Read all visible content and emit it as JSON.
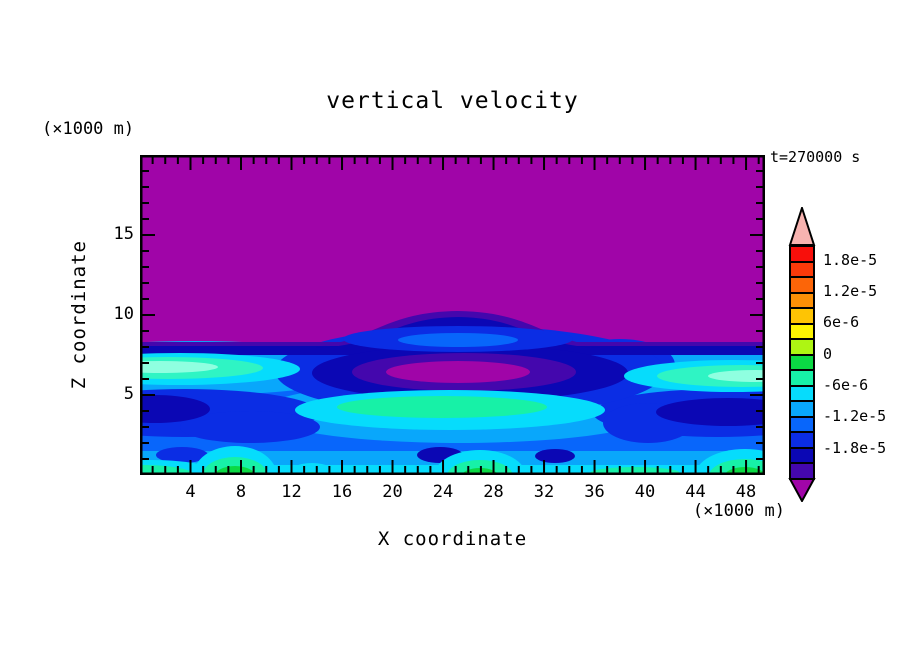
{
  "title": "vertical velocity",
  "time_label": "t=270000 s",
  "axes": {
    "x": {
      "label": "X coordinate",
      "unit": "(×1000 m)",
      "min": 0,
      "max": 49.5,
      "major_ticks": [
        4,
        8,
        12,
        16,
        20,
        24,
        28,
        32,
        36,
        40,
        44,
        48
      ],
      "minor_step": 1
    },
    "z": {
      "label": "Z coordinate",
      "unit": "(×1000 m)",
      "min": 0,
      "max": 20,
      "major_ticks": [
        5,
        10,
        15
      ],
      "minor_step": 1
    }
  },
  "colorbar": {
    "labels": [
      "1.8e-5",
      "1.2e-5",
      "6e-6",
      "0",
      "-6e-6",
      "-1.2e-5",
      "-1.8e-5"
    ],
    "label_boundaries": [
      1,
      3,
      5,
      7,
      9,
      11,
      13
    ],
    "segments": [
      "red",
      "red2",
      "orange",
      "amber",
      "golden",
      "yellow",
      "chartreuse",
      "green",
      "spring",
      "cyan",
      "sky",
      "dodger",
      "blue",
      "navy",
      "indigo"
    ],
    "over_color": "pink",
    "under_color": "purple"
  },
  "palette": {
    "pink": "#f7b3b0",
    "red": "#f80f0b",
    "red2": "#fb3a0a",
    "orange": "#fc6508",
    "amber": "#fd9006",
    "golden": "#fec404",
    "yellow": "#fdf402",
    "chartreuse": "#aef513",
    "green": "#0bd944",
    "spring": "#17f1a7",
    "cyan": "#06dcfc",
    "sky": "#09a7fb",
    "dodger": "#0866fb",
    "blue": "#0b2de4",
    "navy": "#0b07b4",
    "indigo": "#4407ad",
    "purple": "#a005a8",
    "aqua": "#2ff4c4",
    "mint": "#8fffe0"
  },
  "chart_data": {
    "type": "heatmap",
    "subtype": "filled-contour",
    "title": "vertical velocity",
    "xlabel": "X coordinate (×1000 m)",
    "ylabel": "Z coordinate (×1000 m)",
    "xlim": [
      0,
      49.5
    ],
    "ylim": [
      0,
      20
    ],
    "time_label": "t=270000 s",
    "contour_interval": 3e-06,
    "levels": [
      -2.4e-05,
      -2.1e-05,
      -1.8e-05,
      -1.5e-05,
      -1.2e-05,
      -9e-06,
      -6e-06,
      -3e-06,
      0,
      3e-06,
      6e-06,
      9e-06,
      1.2e-05,
      1.5e-05,
      1.8e-05,
      2.1e-05
    ],
    "colorbar_tick_values": [
      1.8e-05,
      1.2e-05,
      6e-06,
      0,
      -6e-06,
      -1.2e-05,
      -1.8e-05
    ],
    "legend_position": "right",
    "grid": false,
    "regions": [
      {
        "location": "all x, z ≈ 8.2–20 (upper half)",
        "value": "below -2.4e-5",
        "color": "purple"
      },
      {
        "location": "all x, band z ≈ 7.5–8.3, bulging to z ≈ 10 over x ≈ 14–34",
        "value": "-2.4e-5 to -1.8e-5",
        "color": "indigo/navy"
      },
      {
        "location": "ellipse x ≈ 17–34, z ≈ 8.5–9.3 inside dome",
        "value": "-1.5e-5 to -1.2e-5",
        "color": "blue/dodger"
      },
      {
        "location": "closed core x ≈ 19.5–31, z ≈ 5.7–7.1, centered x ≈ 25, z ≈ 6.4",
        "value": "below -2.4e-5 core ringed by indigo and navy",
        "color": "purple core"
      },
      {
        "location": "x ≈ 0–9, z ≈ 6.3–7.0 and x ≈ 43–49.5, z ≈ 6.2–6.9",
        "value": "-6e-6 to -3e-6",
        "color": "aquamarine maxima"
      },
      {
        "location": "x ≈ 18–30, z ≈ 3.8–4.6",
        "value": "-6e-6 to -3e-6",
        "color": "cyan/aquamarine patch"
      },
      {
        "location": "x ≈ 0–4, z ≈ 3.5–4.5 and x ≈ 43–49.5, z ≈ 3.3–4.5",
        "value": "-2.1e-5 to -1.8e-5",
        "color": "navy minima"
      },
      {
        "location": "surface bumps near x ≈ 7.5, 27, 38, 48, z 0–1.8",
        "value": "-3e-6 to 0 at cores",
        "color": "green cores with spring-green and cyan rings"
      },
      {
        "location": "small closed lows near x ≈ 23.5 and x ≈ 33, z ≈ 1.2",
        "value": "-2.1e-5 to -1.8e-5",
        "color": "navy blobs"
      }
    ]
  }
}
